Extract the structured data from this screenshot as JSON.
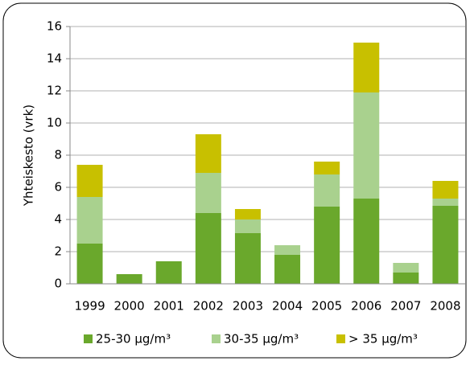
{
  "chart_data": {
    "type": "bar",
    "stacked": true,
    "y_label": "Yhteiskesto (vrk)",
    "categories": [
      "1999",
      "2000",
      "2001",
      "2002",
      "2003",
      "2004",
      "2005",
      "2006",
      "2007",
      "2008"
    ],
    "series": [
      {
        "name": "25-30 µg/m³",
        "color": "#6aa82c",
        "values": [
          2.5,
          0.6,
          1.4,
          4.4,
          3.15,
          1.8,
          4.8,
          5.3,
          0.7,
          4.85
        ]
      },
      {
        "name": "30-35 µg/m³",
        "color": "#a9d18e",
        "values": [
          2.9,
          0,
          0,
          2.5,
          0.85,
          0.6,
          2.0,
          6.6,
          0.6,
          0.45
        ]
      },
      {
        "name": "> 35 µg/m³",
        "color": "#c8c000",
        "values": [
          2.0,
          0,
          0,
          2.4,
          0.65,
          0,
          0.8,
          3.1,
          0,
          1.1
        ]
      }
    ],
    "ylim": [
      0,
      16
    ],
    "yticks": [
      0,
      2,
      4,
      6,
      8,
      10,
      12,
      14,
      16
    ],
    "grid": true
  }
}
